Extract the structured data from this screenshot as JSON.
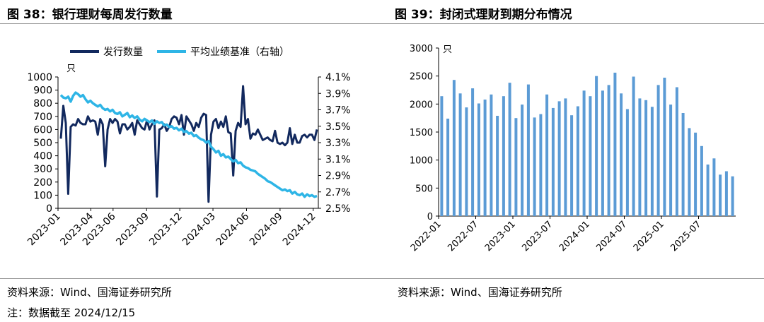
{
  "titles": {
    "left": "图 38：银行理财每周发行数量",
    "right": "图 39：封闭式理财到期分布情况"
  },
  "footnotes": {
    "source_left": "资料来源：Wind、国海证券研究所",
    "source_right": "资料来源：Wind、国海证券研究所",
    "note": "注：数据截至 2024/12/15"
  },
  "chart_data": [
    {
      "type": "line",
      "title": "银行理财每周发行数量",
      "y_unit": "只",
      "legend_placement": "top",
      "x_tick_labels": [
        "2023-01",
        "2023-04",
        "2023-06",
        "2023-09",
        "2023-12",
        "2024-03",
        "2024-06",
        "2024-09",
        "2024-12"
      ],
      "x_range": [
        "2023-01-01",
        "2024-12-15"
      ],
      "y_left_ticks": [
        "0",
        "100",
        "200",
        "300",
        "400",
        "500",
        "600",
        "700",
        "800",
        "900",
        "1000"
      ],
      "y_left_range": [
        0,
        1000
      ],
      "y_right_ticks": [
        "2.5%",
        "2.7%",
        "2.9%",
        "3.1%",
        "3.3%",
        "3.5%",
        "3.7%",
        "3.9%",
        "4.1%"
      ],
      "y_right_range": [
        2.5,
        4.1
      ],
      "series": [
        {
          "name": "发行数量",
          "axis": "left",
          "color": "#12295e",
          "values": [
            530,
            780,
            650,
            110,
            620,
            640,
            630,
            680,
            650,
            640,
            640,
            700,
            660,
            670,
            660,
            560,
            680,
            640,
            320,
            600,
            680,
            650,
            680,
            660,
            570,
            640,
            640,
            600,
            620,
            650,
            560,
            670,
            640,
            610,
            600,
            670,
            600,
            640,
            670,
            90,
            600,
            610,
            640,
            590,
            620,
            680,
            700,
            690,
            640,
            710,
            560,
            700,
            670,
            640,
            590,
            650,
            620,
            690,
            720,
            710,
            50,
            560,
            660,
            680,
            610,
            660,
            620,
            700,
            580,
            570,
            250,
            590,
            650,
            620,
            930,
            640,
            680,
            530,
            570,
            560,
            600,
            560,
            520,
            530,
            540,
            520,
            510,
            590,
            500,
            490,
            500,
            480,
            500,
            610,
            490,
            560,
            500,
            500,
            550,
            560,
            540,
            560,
            560,
            520,
            600
          ]
        },
        {
          "name": "平均业绩基准（右轴）",
          "axis": "right",
          "color": "#2eb5e6",
          "values": [
            3.88,
            3.85,
            3.84,
            3.86,
            3.8,
            3.87,
            3.91,
            3.89,
            3.86,
            3.88,
            3.83,
            3.79,
            3.81,
            3.78,
            3.76,
            3.74,
            3.76,
            3.72,
            3.7,
            3.71,
            3.68,
            3.7,
            3.66,
            3.65,
            3.67,
            3.62,
            3.64,
            3.66,
            3.61,
            3.63,
            3.6,
            3.62,
            3.58,
            3.56,
            3.59,
            3.57,
            3.55,
            3.57,
            3.53,
            3.56,
            3.54,
            3.55,
            3.51,
            3.52,
            3.49,
            3.5,
            3.47,
            3.48,
            3.45,
            3.47,
            3.43,
            3.44,
            3.41,
            3.42,
            3.38,
            3.39,
            3.36,
            3.34,
            3.33,
            3.3,
            3.32,
            3.25,
            3.22,
            3.18,
            3.2,
            3.14,
            3.16,
            3.12,
            3.13,
            3.1,
            3.07,
            3.09,
            3.05,
            3.06,
            3.02,
            3.0,
            2.99,
            2.97,
            2.96,
            2.95,
            2.92,
            2.9,
            2.88,
            2.86,
            2.83,
            2.82,
            2.8,
            2.78,
            2.76,
            2.74,
            2.72,
            2.73,
            2.71,
            2.72,
            2.68,
            2.7,
            2.67,
            2.66,
            2.68,
            2.64,
            2.67,
            2.65,
            2.66,
            2.64,
            2.65
          ]
        }
      ]
    },
    {
      "type": "bar",
      "title": "封闭式理财到期分布情况",
      "y_unit": "只",
      "x_tick_labels": [
        "2022-01",
        "2022-07",
        "2023-01",
        "2023-07",
        "2024-01",
        "2024-07",
        "2025-01",
        "2025-07"
      ],
      "y_ticks": [
        "0",
        "500",
        "1000",
        "1500",
        "2000",
        "2500",
        "3000"
      ],
      "ylim": [
        0,
        3000
      ],
      "color": "#5b9bd5",
      "categories": [
        "2022-01",
        "2022-02",
        "2022-03",
        "2022-04",
        "2022-05",
        "2022-06",
        "2022-07",
        "2022-08",
        "2022-09",
        "2022-10",
        "2022-11",
        "2022-12",
        "2023-01",
        "2023-02",
        "2023-03",
        "2023-04",
        "2023-05",
        "2023-06",
        "2023-07",
        "2023-08",
        "2023-09",
        "2023-10",
        "2023-11",
        "2023-12",
        "2024-01",
        "2024-02",
        "2024-03",
        "2024-04",
        "2024-05",
        "2024-06",
        "2024-07",
        "2024-08",
        "2024-09",
        "2024-10",
        "2024-11",
        "2024-12",
        "2025-01",
        "2025-02",
        "2025-03",
        "2025-04",
        "2025-05",
        "2025-06",
        "2025-07",
        "2025-08",
        "2025-09",
        "2025-10",
        "2025-11",
        "2025-12"
      ],
      "values": [
        2140,
        1740,
        2430,
        2190,
        1940,
        2280,
        2010,
        2080,
        2170,
        1790,
        2140,
        2380,
        1750,
        1990,
        2350,
        1760,
        1820,
        2170,
        1930,
        2050,
        2100,
        1800,
        1960,
        2240,
        2140,
        2500,
        2240,
        2340,
        2560,
        2190,
        1910,
        2490,
        2100,
        2070,
        1950,
        2340,
        2470,
        1990,
        2300,
        1840,
        1570,
        1490,
        1250,
        920,
        1030,
        740,
        800,
        710
      ]
    }
  ]
}
